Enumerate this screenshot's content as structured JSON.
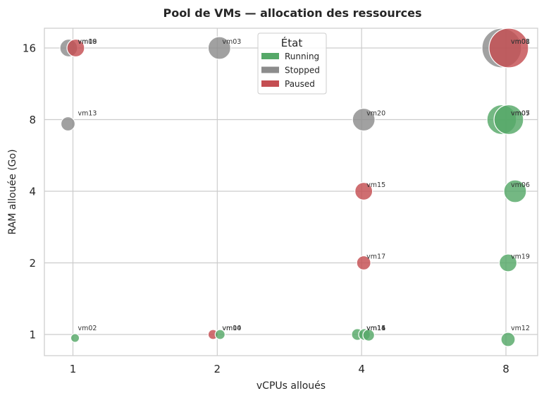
{
  "chart_data": {
    "type": "scatter",
    "title": "Pool de VMs — allocation des ressources",
    "xlabel": "vCPUs alloués",
    "ylabel": "RAM allouée (Go)",
    "x_ticks": [
      1,
      2,
      4,
      8
    ],
    "y_ticks": [
      1,
      2,
      4,
      8,
      16
    ],
    "legend": {
      "title": "État",
      "position": "top-center",
      "entries": [
        {
          "name": "Running",
          "color": "#55a868"
        },
        {
          "name": "Stopped",
          "color": "#8c8c8c"
        },
        {
          "name": "Paused",
          "color": "#c44e52"
        }
      ]
    },
    "points": [
      {
        "label": "vm01",
        "vcpu": 8,
        "ram": 16,
        "state": "Stopped"
      },
      {
        "label": "vm02",
        "vcpu": 1,
        "ram": 1,
        "state": "Running"
      },
      {
        "label": "vm03",
        "vcpu": 2,
        "ram": 16,
        "state": "Stopped"
      },
      {
        "label": "vm05",
        "vcpu": 8,
        "ram": 8,
        "state": "Running"
      },
      {
        "label": "vm06",
        "vcpu": 8,
        "ram": 4,
        "state": "Running"
      },
      {
        "label": "vm07",
        "vcpu": 8,
        "ram": 8,
        "state": "Running"
      },
      {
        "label": "vm08",
        "vcpu": 8,
        "ram": 16,
        "state": "Paused"
      },
      {
        "label": "vm09",
        "vcpu": 1,
        "ram": 16,
        "state": "Stopped"
      },
      {
        "label": "vm10",
        "vcpu": 2,
        "ram": 1,
        "state": "Paused"
      },
      {
        "label": "vm11",
        "vcpu": 4,
        "ram": 1,
        "state": "Running"
      },
      {
        "label": "vm12",
        "vcpu": 8,
        "ram": 1,
        "state": "Running"
      },
      {
        "label": "vm13",
        "vcpu": 1,
        "ram": 8,
        "state": "Stopped"
      },
      {
        "label": "vm14",
        "vcpu": 4,
        "ram": 1,
        "state": "Running"
      },
      {
        "label": "vm15",
        "vcpu": 4,
        "ram": 4,
        "state": "Paused"
      },
      {
        "label": "vm16",
        "vcpu": 4,
        "ram": 1,
        "state": "Running"
      },
      {
        "label": "vm17",
        "vcpu": 4,
        "ram": 2,
        "state": "Paused"
      },
      {
        "label": "vm18",
        "vcpu": 1,
        "ram": 16,
        "state": "Paused"
      },
      {
        "label": "vm19",
        "vcpu": 8,
        "ram": 2,
        "state": "Running"
      },
      {
        "label": "vm20",
        "vcpu": 4,
        "ram": 8,
        "state": "Stopped"
      },
      {
        "label": "vm04",
        "vcpu": 2,
        "ram": 1,
        "state": "Running"
      }
    ]
  }
}
